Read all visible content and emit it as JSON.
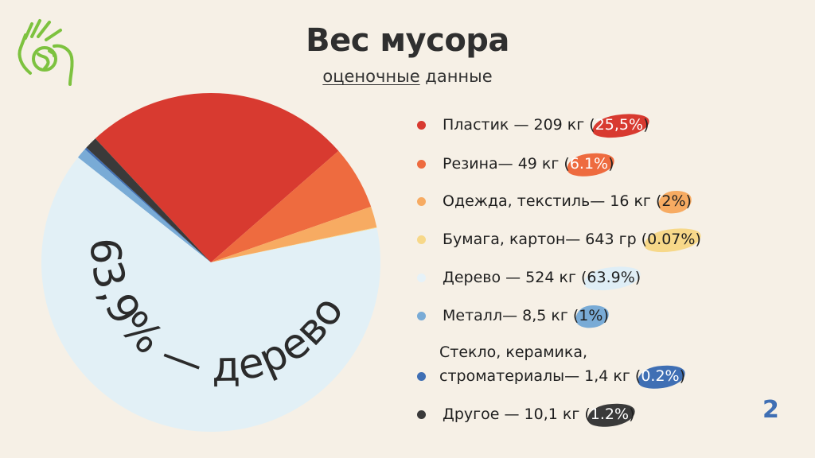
{
  "header": {
    "title": "Вес мусора",
    "subtitle_underlined": "оценочные",
    "subtitle_rest": " данные"
  },
  "colors": {
    "plastic": "#d83a30",
    "rubber": "#ee6b3f",
    "textile": "#f7ab62",
    "paper": "#f7d889",
    "wood": "#e2f0f6",
    "metal": "#79abd6",
    "glass": "#3f6fb4",
    "other": "#3a3a3a",
    "logo": "#7dc23f"
  },
  "chart_data": {
    "type": "pie",
    "slices": [
      {
        "key": "plastic",
        "label": "Пластик — 209 кг (",
        "pct": "25,5%",
        "pct_close": ")",
        "value": 25.5
      },
      {
        "key": "rubber",
        "label": "Резина— 49 кг (",
        "pct": "6.1%",
        "pct_close": ")",
        "value": 6.1
      },
      {
        "key": "textile",
        "label": "Одежда, текстиль— 16 кг (",
        "pct": "2%",
        "pct_close": ")",
        "value": 2
      },
      {
        "key": "paper",
        "label": "Бумага, картон— 643 гр (",
        "pct": "0.07%",
        "pct_close": ")",
        "value": 0.07
      },
      {
        "key": "wood",
        "label": "Дерево — 524 кг (",
        "pct": "63.9%",
        "pct_close": ")",
        "value": 63.9
      },
      {
        "key": "metal",
        "label": "Металл— 8,5 кг (",
        "pct": "1%",
        "pct_close": ")",
        "value": 1
      },
      {
        "key": "glass",
        "label": "Стекло, керамика,",
        "label2": "строматериалы— 1,4 кг (",
        "pct": "0.2%",
        "pct_close": ")",
        "value": 0.2
      },
      {
        "key": "other",
        "label": "Другое — 10,1 кг (",
        "pct": "1.2%",
        "pct_close": ")",
        "value": 1.2
      }
    ],
    "annotation": "63,9% — дерево"
  },
  "page_number": "2"
}
